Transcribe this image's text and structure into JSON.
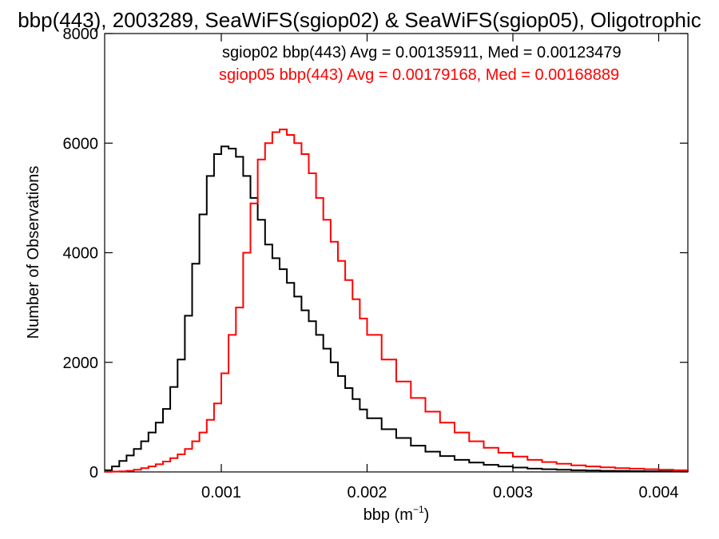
{
  "chart_data": {
    "type": "line",
    "title": "bbp(443), 2003289, SeaWiFS(sgiop02) & SeaWiFS(sgiop05), Oligotrophic",
    "xlabel_main": "bbp (m",
    "xlabel_sup": "−1",
    "xlabel_close": ")",
    "ylabel": "Number of Observations",
    "xlim": [
      0.0002,
      0.0042
    ],
    "ylim": [
      0,
      8000
    ],
    "x_ticks": [
      0.001,
      0.002,
      0.003,
      0.004
    ],
    "x_tick_labels": [
      "0.001",
      "0.002",
      "0.003",
      "0.004"
    ],
    "y_ticks": [
      0,
      2000,
      4000,
      6000,
      8000
    ],
    "y_tick_labels": [
      "0",
      "2000",
      "4000",
      "6000",
      "8000"
    ],
    "grid": false,
    "legend_position": "top-right",
    "series": [
      {
        "name": "sgiop02 bbp(443) Avg = 0.00135911, Med = 0.00123479",
        "color": "#000000",
        "x": [
          0.0002,
          0.00025,
          0.0003,
          0.00035,
          0.0004,
          0.00045,
          0.0005,
          0.00055,
          0.0006,
          0.00065,
          0.0007,
          0.00075,
          0.0008,
          0.00085,
          0.0009,
          0.00095,
          0.001,
          0.00105,
          0.0011,
          0.00115,
          0.0012,
          0.00125,
          0.0013,
          0.00135,
          0.0014,
          0.00145,
          0.0015,
          0.00155,
          0.0016,
          0.00165,
          0.0017,
          0.00175,
          0.0018,
          0.00185,
          0.0019,
          0.00195,
          0.002,
          0.0021,
          0.0022,
          0.0023,
          0.0024,
          0.0025,
          0.0026,
          0.0027,
          0.0028,
          0.0029,
          0.003,
          0.0031,
          0.0032,
          0.0033,
          0.0034,
          0.0035,
          0.0036,
          0.0037,
          0.0038,
          0.0039,
          0.004,
          0.0041,
          0.0042
        ],
        "y": [
          30,
          100,
          200,
          300,
          420,
          560,
          720,
          900,
          1150,
          1550,
          2050,
          2850,
          3800,
          4700,
          5400,
          5800,
          5940,
          5900,
          5750,
          5400,
          5000,
          4600,
          4150,
          3900,
          3700,
          3450,
          3200,
          2950,
          2750,
          2500,
          2250,
          2000,
          1750,
          1530,
          1330,
          1140,
          980,
          780,
          620,
          480,
          370,
          290,
          220,
          170,
          130,
          100,
          80,
          60,
          50,
          40,
          30,
          25,
          20,
          18,
          15,
          12,
          10,
          8,
          6
        ]
      },
      {
        "name": "sgiop05 bbp(443) Avg = 0.00179168, Med = 0.00168889",
        "color": "#ff0000",
        "x": [
          0.0002,
          0.00025,
          0.0003,
          0.00035,
          0.0004,
          0.00045,
          0.0005,
          0.00055,
          0.0006,
          0.00065,
          0.0007,
          0.00075,
          0.0008,
          0.00085,
          0.0009,
          0.00095,
          0.001,
          0.00105,
          0.0011,
          0.00115,
          0.0012,
          0.00125,
          0.0013,
          0.00135,
          0.0014,
          0.00145,
          0.0015,
          0.00155,
          0.0016,
          0.00165,
          0.0017,
          0.00175,
          0.0018,
          0.00185,
          0.0019,
          0.00195,
          0.002,
          0.0021,
          0.0022,
          0.0023,
          0.0024,
          0.0025,
          0.0026,
          0.0027,
          0.0028,
          0.0029,
          0.003,
          0.0031,
          0.0032,
          0.0033,
          0.0034,
          0.0035,
          0.0036,
          0.0037,
          0.0038,
          0.0039,
          0.004,
          0.0041,
          0.0042
        ],
        "y": [
          5,
          8,
          12,
          20,
          40,
          70,
          100,
          140,
          190,
          250,
          320,
          420,
          560,
          720,
          950,
          1250,
          1800,
          2500,
          3000,
          4000,
          4900,
          5700,
          6000,
          6200,
          6250,
          6150,
          6000,
          5800,
          5450,
          5000,
          4600,
          4200,
          3850,
          3500,
          3150,
          2800,
          2500,
          2050,
          1650,
          1350,
          1100,
          900,
          720,
          560,
          440,
          350,
          280,
          220,
          180,
          150,
          120,
          100,
          85,
          70,
          60,
          50,
          40,
          30,
          25
        ]
      }
    ]
  }
}
